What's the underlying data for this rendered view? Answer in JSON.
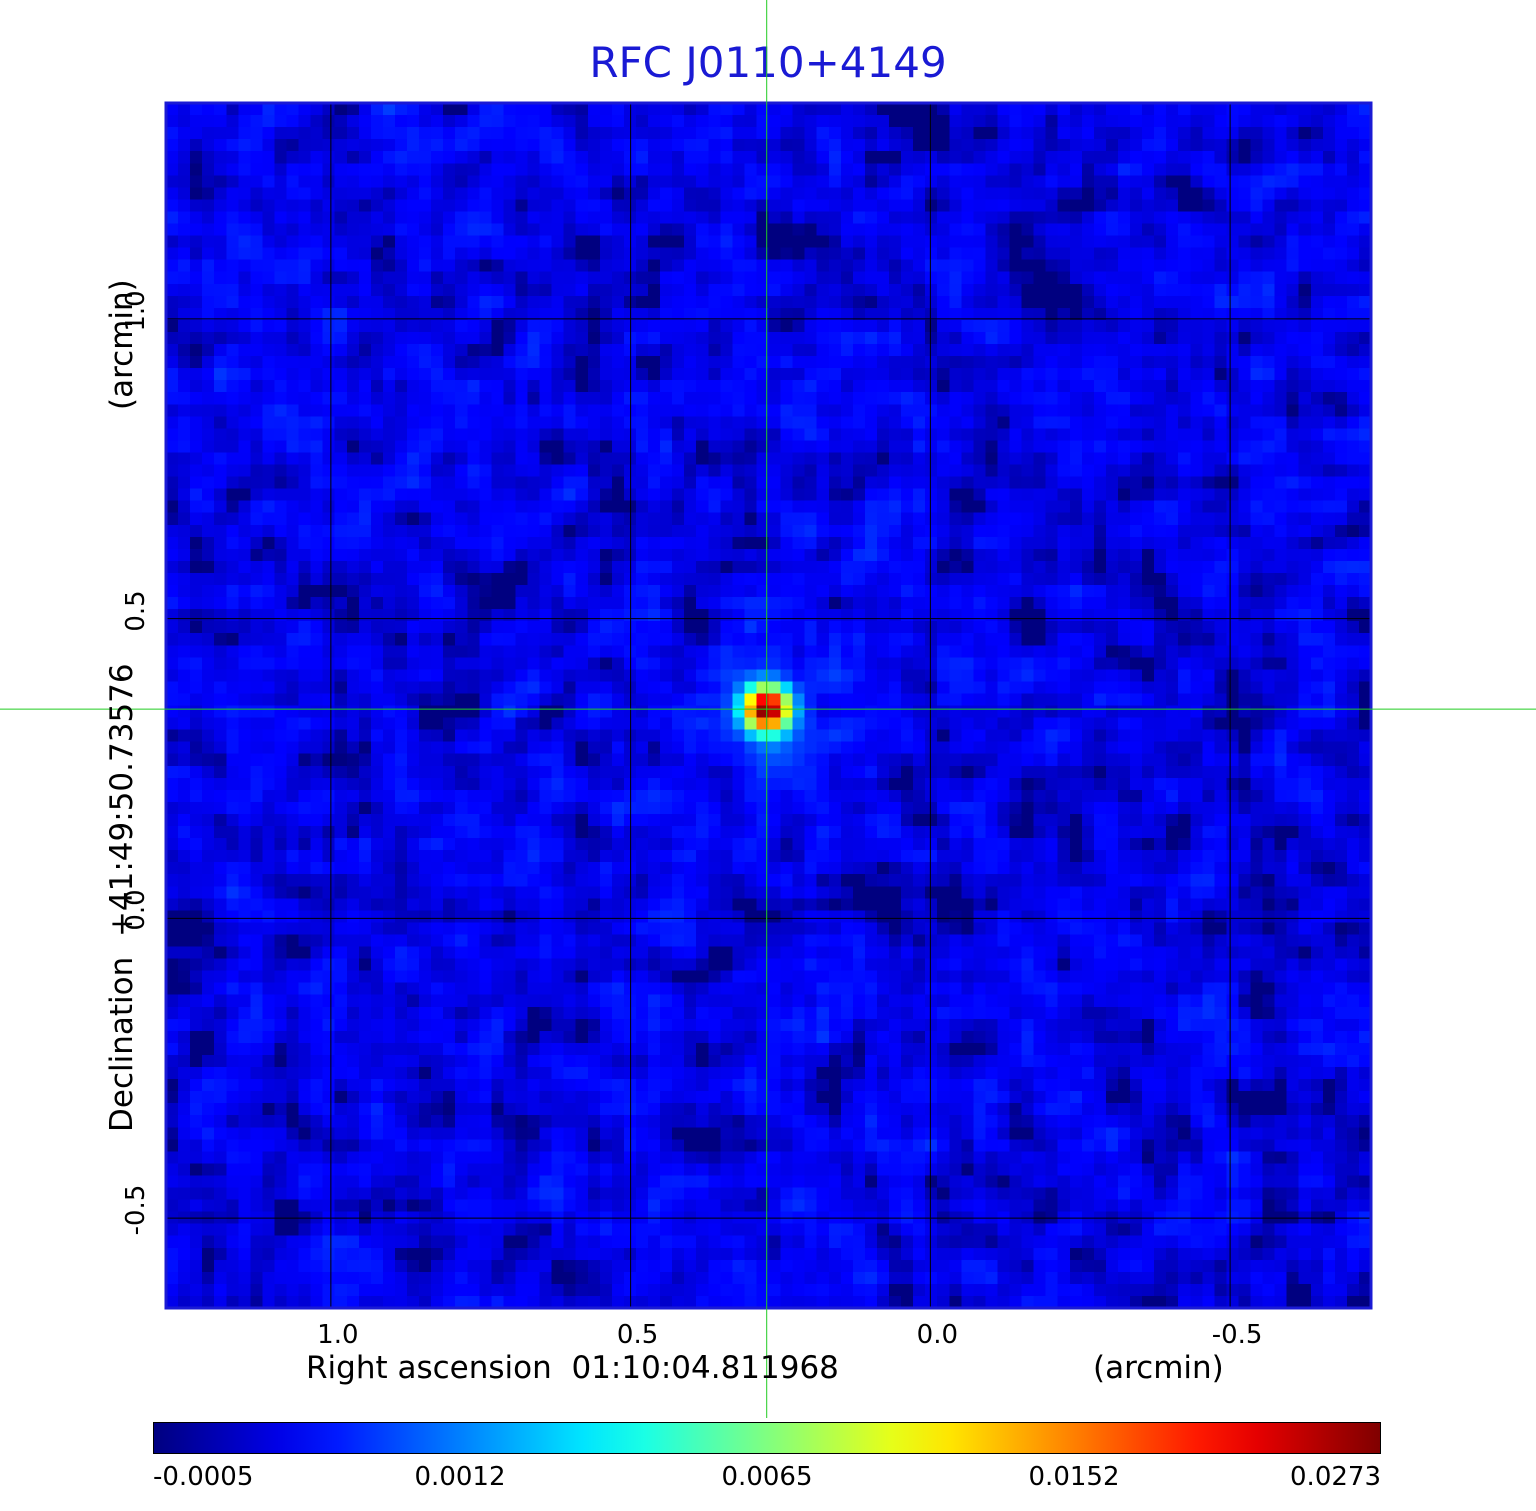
{
  "chart_data": {
    "type": "heatmap",
    "title": "RFC J0110+4149",
    "xlabel": "Right ascension  01:10:04.811968",
    "xunit": "(arcmin)",
    "ylabel": "Declination  +41:49:50.73576",
    "yunit": "(arcmin)",
    "xlim": [
      1.275,
      -0.735
    ],
    "ylim": [
      -0.65,
      1.36
    ],
    "x_ticks": [
      {
        "value": 1.0,
        "label": "1.0"
      },
      {
        "value": 0.5,
        "label": "0.5"
      },
      {
        "value": 0.0,
        "label": "0.0"
      },
      {
        "value": -0.5,
        "label": "-0.5"
      }
    ],
    "y_ticks": [
      {
        "value": 1.0,
        "label": "1.0"
      },
      {
        "value": 0.5,
        "label": "0.5"
      },
      {
        "value": 0.0,
        "label": "0.0"
      },
      {
        "value": -0.5,
        "label": "-0.5"
      }
    ],
    "grid": true,
    "crosshair": {
      "x": 0.273,
      "y": 0.349,
      "color": "#22cc22"
    },
    "source_peak": {
      "x": 0.273,
      "y": 0.349,
      "value": 0.0273
    },
    "background_level": -0.0002,
    "colormap": "jet",
    "colorbar": {
      "orientation": "horizontal",
      "position": "bottom",
      "labels": [
        "-0.0005",
        "0.0012",
        "0.0065",
        "0.0152",
        "0.0273"
      ],
      "values": [
        -0.0005,
        0.0012,
        0.0065,
        0.0152,
        0.0273
      ]
    },
    "colors": {
      "title": "#1a1ad4",
      "frame": "#1a1ad4",
      "grid": "#000000",
      "crosshair": "#22cc22"
    }
  }
}
